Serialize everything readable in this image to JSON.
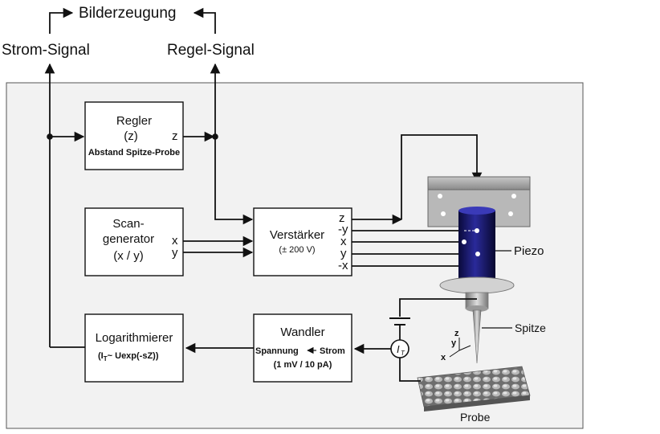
{
  "top": {
    "imaging": "Bilderzeugung",
    "current_signal": "Strom-Signal",
    "control_signal": "Regel-Signal"
  },
  "controller": {
    "title": "Regler",
    "param": "(z)",
    "output": "z",
    "desc": "Abstand Spitze-Probe"
  },
  "scan_generator": {
    "line1": "Scan-",
    "line2": "generator",
    "line3": "(x / y)",
    "out_x": "x",
    "out_y": "y"
  },
  "amplifier": {
    "title": "Verstärker",
    "range": "(± 200 V)",
    "outputs": [
      "z",
      "-y",
      "x",
      "y",
      "-x"
    ]
  },
  "logarithmizer": {
    "title": "Logarithmierer",
    "formula_prefix": "(I",
    "formula_sub": "T",
    "formula_rest": "~ ",
    "formula_bold": "U",
    "formula_tail": "exp(-sZ))"
  },
  "converter": {
    "title": "Wandler",
    "from": "Spannung",
    "to": "Strom",
    "range": "(1 mV / 10 pA)"
  },
  "current_meter": {
    "symbol": "I",
    "sub": "T"
  },
  "labels": {
    "piezo": "Piezo",
    "tip": "Spitze",
    "sample": "Probe"
  },
  "axes": {
    "z": "z",
    "y": "y",
    "x": "x"
  }
}
